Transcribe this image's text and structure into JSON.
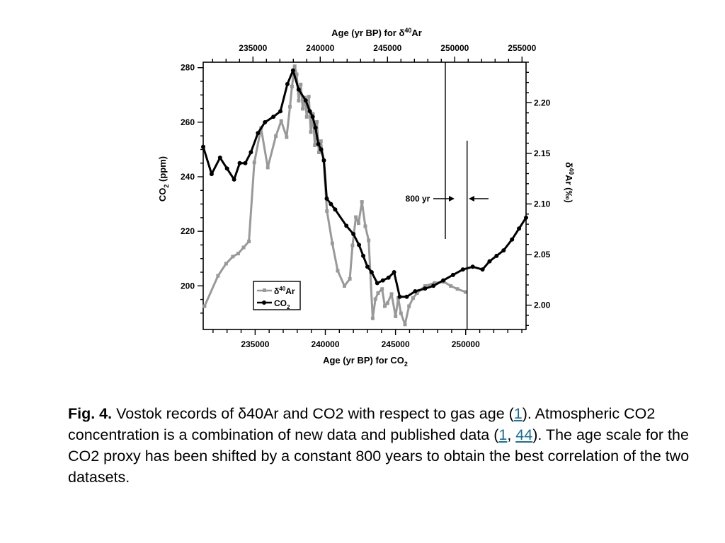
{
  "chart_data": {
    "type": "line",
    "x_bottom": {
      "label": "Age (yr BP) for CO",
      "label_sub": "2",
      "range": [
        231300,
        254300
      ],
      "ticks": [
        235000,
        240000,
        245000,
        250000
      ],
      "tick_labels": [
        "235000",
        "240000",
        "245000",
        "250000"
      ]
    },
    "x_top": {
      "label_pre": "Age (yr BP) for δ",
      "label_sup": "40",
      "label_post": "Ar",
      "range": [
        231300,
        255300
      ],
      "ticks": [
        235000,
        240000,
        245000,
        250000,
        255000
      ],
      "tick_labels": [
        "235000",
        "240000",
        "245000",
        "250000",
        "255000"
      ]
    },
    "y_left": {
      "label_pre": "CO",
      "label_sub": "2",
      "label_post": " (ppm)",
      "range": [
        184,
        282
      ],
      "ticks": [
        200,
        220,
        240,
        260,
        280
      ],
      "tick_labels": [
        "200",
        "220",
        "240",
        "260",
        "280"
      ]
    },
    "y_right": {
      "label_pre": "δ",
      "label_sup": "40",
      "label_post": "Ar (‰)",
      "range": [
        1.976,
        2.24
      ],
      "ticks": [
        2.0,
        2.05,
        2.1,
        2.15,
        2.2
      ],
      "tick_labels": [
        "2.00",
        "2.05",
        "2.10",
        "2.15",
        "2.20"
      ]
    },
    "series": [
      {
        "name": "δ",
        "name_sup": "40",
        "name_post": "Ar",
        "axis": "top-right",
        "color": "#999999",
        "marker": "square",
        "x": [
          231400,
          232400,
          233000,
          233500,
          233900,
          234300,
          234700,
          235100,
          235600,
          236100,
          236700,
          237100,
          237500,
          237750,
          237900,
          238100,
          238250,
          238400,
          238550,
          238700,
          238850,
          239000,
          239150,
          239300,
          239450,
          239600,
          239750,
          239900,
          240050,
          240250,
          240500,
          240900,
          241300,
          241800,
          242200,
          242400,
          242650,
          242850,
          243100,
          243350,
          243600,
          243900,
          244100,
          244300,
          244600,
          244800,
          245000,
          245300,
          245600,
          245800,
          246000,
          246300,
          246600,
          246900,
          247200,
          247800,
          248500,
          249200,
          249700,
          250200,
          250800
        ],
        "y": [
          1.999,
          2.029,
          2.041,
          2.048,
          2.051,
          2.057,
          2.063,
          2.141,
          2.175,
          2.136,
          2.167,
          2.182,
          2.166,
          2.196,
          2.216,
          2.236,
          2.228,
          2.202,
          2.218,
          2.194,
          2.205,
          2.186,
          2.206,
          2.171,
          2.189,
          2.158,
          2.181,
          2.151,
          2.162,
          2.143,
          2.093,
          2.061,
          2.034,
          2.019,
          2.026,
          2.059,
          2.087,
          2.081,
          2.102,
          2.078,
          2.064,
          1.987,
          2.006,
          2.012,
          2.016,
          1.999,
          2.002,
          2.011,
          1.989,
          2.007,
          1.992,
          1.981,
          1.999,
          2.007,
          2.012,
          2.019,
          2.022,
          2.023,
          2.019,
          2.016,
          2.013
        ]
      },
      {
        "name": "CO",
        "name_sub": "2",
        "axis": "bottom-left",
        "color": "#000000",
        "marker": "circle",
        "x": [
          231300,
          231900,
          232500,
          233000,
          233500,
          233900,
          234300,
          234700,
          235200,
          235700,
          236300,
          236800,
          237300,
          237700,
          238100,
          238600,
          238900,
          239100,
          239300,
          239500,
          239700,
          239900,
          240100,
          240400,
          240700,
          241500,
          242000,
          242400,
          242700,
          243000,
          243300,
          243700,
          244100,
          244500,
          244900,
          245300,
          245800,
          246400,
          247100,
          247700,
          248400,
          249100,
          249800,
          250500,
          251200,
          251700,
          252200,
          252700,
          253300,
          253800,
          254300
        ],
        "y": [
          251,
          241,
          247,
          243,
          239,
          245,
          245,
          249,
          256,
          260,
          262,
          264,
          274,
          279,
          272,
          268,
          264,
          262,
          258,
          252,
          250,
          246,
          232,
          230,
          228,
          222,
          219,
          215,
          211,
          207,
          205,
          201,
          202,
          203,
          205,
          196,
          196,
          198,
          199,
          200,
          202,
          204,
          206,
          207,
          206,
          209,
          211,
          213,
          217,
          221,
          225
        ]
      }
    ],
    "annotation": {
      "text": "800 yr",
      "line_top_x": 249300,
      "line_bottom_x": 250100
    },
    "grid": false,
    "legend": "bottom-left"
  },
  "caption": {
    "fig_label": "Fig. 4.",
    "text_1": " Vostok records of  δ40Ar and CO2 with respect to gas age (",
    "ref_1": "1",
    "text_2": "). Atmospheric CO2 concentration is a combination of new data and published data (",
    "ref_2": "1",
    "text_3": ", ",
    "ref_3": "44",
    "text_4": "). The age scale for the CO2 proxy has been shifted by a constant 800 years to obtain the best correlation of the two datasets."
  },
  "colors": {
    "dar_series": "#999999",
    "co2_series": "#000000",
    "link": "#1a6f9a"
  }
}
